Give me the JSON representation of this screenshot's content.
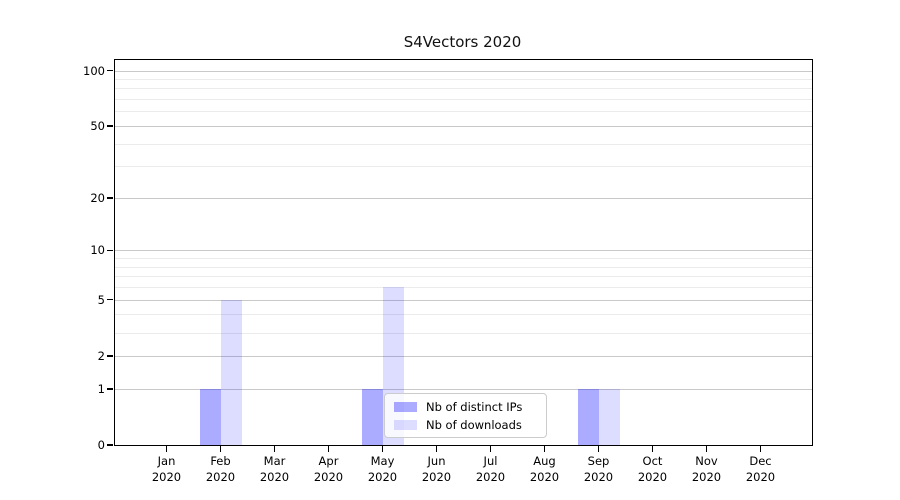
{
  "title": "S4Vectors 2020",
  "legend": {
    "items": [
      {
        "label": "Nb of distinct IPs",
        "series_index": 0
      },
      {
        "label": "Nb of downloads",
        "series_index": 1
      }
    ]
  },
  "colors": {
    "distinct_ips_bar": "rgba(0,0,255,0.33)",
    "downloads_bar": "rgba(0,0,255,0.135)",
    "grid_major": "#c9c9c9",
    "grid_minor": "#ebebeb",
    "axis": "#000000",
    "legend_border": "#cccccc"
  },
  "chart_data": {
    "type": "bar",
    "title": "S4Vectors 2020",
    "categories": [
      "Jan",
      "Feb",
      "Mar",
      "Apr",
      "May",
      "Jun",
      "Jul",
      "Aug",
      "Sep",
      "Oct",
      "Nov",
      "Dec"
    ],
    "year_label": "2020",
    "series": [
      {
        "name": "Nb of distinct IPs",
        "color": "rgba(0,0,255,0.33)",
        "values": [
          0,
          1,
          0,
          0,
          1,
          0,
          0,
          0,
          1,
          0,
          0,
          0
        ]
      },
      {
        "name": "Nb of downloads",
        "color": "rgba(0,0,255,0.135)",
        "values": [
          0,
          5,
          0,
          0,
          6,
          0,
          0,
          0,
          1,
          0,
          0,
          0
        ]
      }
    ],
    "xlabel": "",
    "ylabel": "",
    "yscale": "log1p",
    "yticks": [
      0,
      1,
      2,
      5,
      10,
      20,
      50,
      100
    ],
    "yticks_minor": [
      3,
      4,
      6,
      7,
      8,
      9,
      30,
      40,
      60,
      70,
      80,
      90
    ],
    "ylim": [
      0,
      114
    ],
    "grid": true,
    "legend_position": "inside-bottom-center"
  }
}
